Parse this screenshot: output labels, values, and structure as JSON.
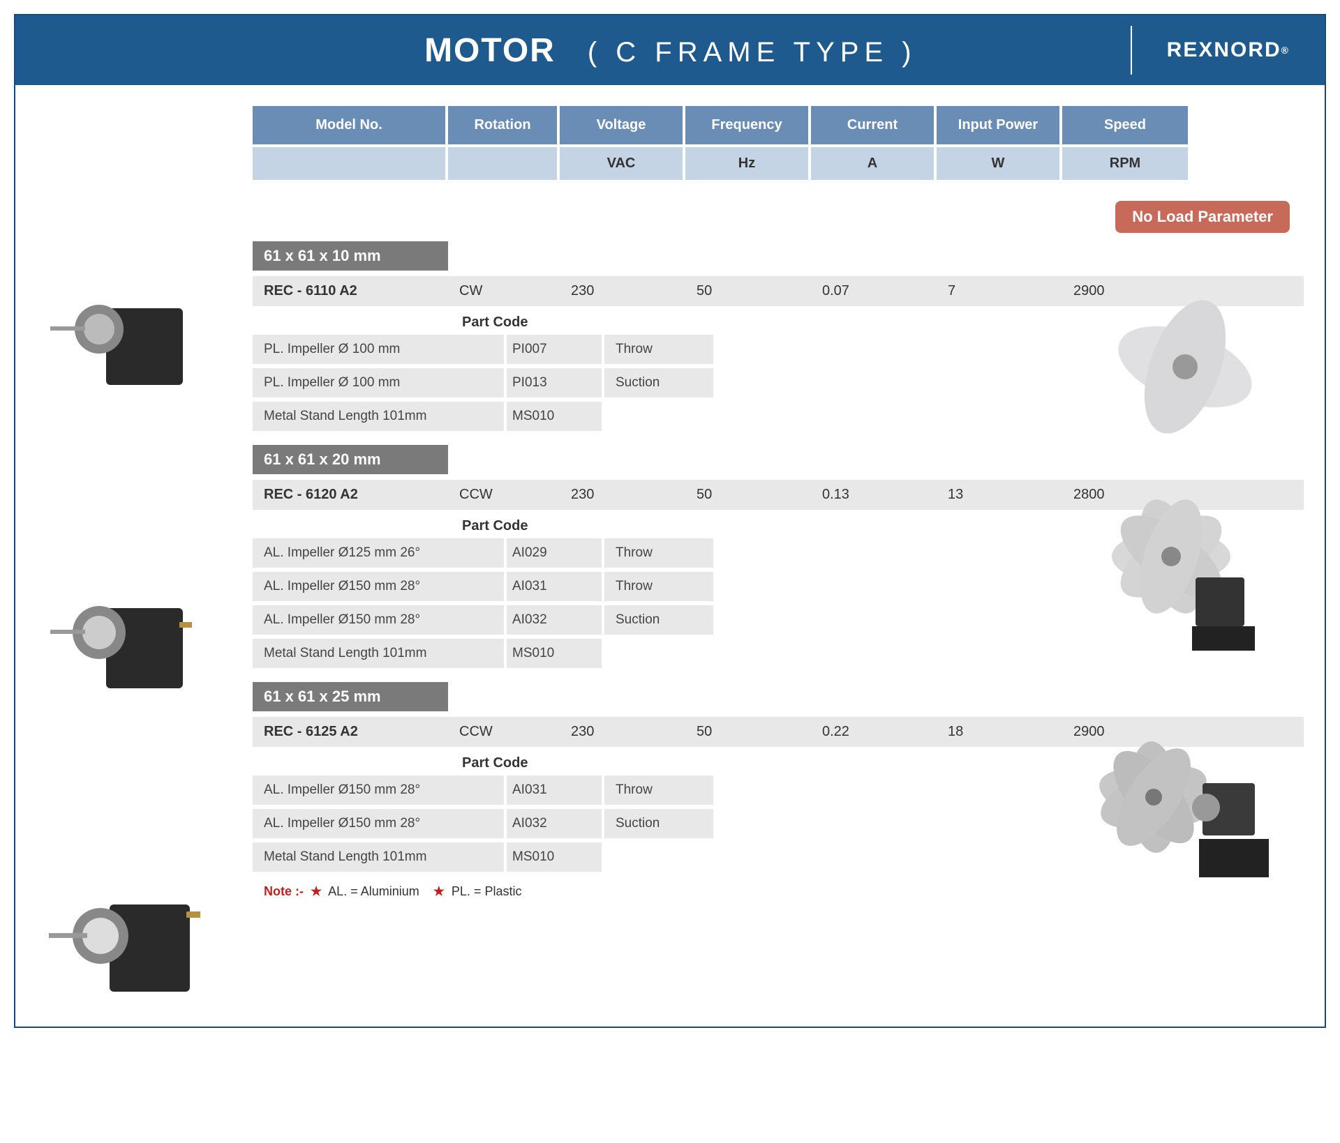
{
  "header": {
    "title_main": "MOTOR",
    "title_sub": "( C  FRAME  TYPE )",
    "brand": "REXNORD"
  },
  "table_header": {
    "cols": [
      "Model No.",
      "Rotation",
      "Voltage",
      "Frequency",
      "Current",
      "Input Power",
      "Speed"
    ],
    "units": [
      "",
      "",
      "VAC",
      "Hz",
      "A",
      "W",
      "RPM"
    ]
  },
  "badge": "No Load Parameter",
  "sections": [
    {
      "dim": "61 x 61 x 10 mm",
      "model": [
        "REC - 6110 A2",
        "CW",
        "230",
        "50",
        "0.07",
        "7",
        "2900"
      ],
      "part_label": "Part Code",
      "parts": [
        [
          "PL. Impeller Ø 100 mm",
          "PI007",
          "Throw"
        ],
        [
          "PL. Impeller Ø 100 mm",
          "PI013",
          "Suction"
        ],
        [
          "Metal Stand Length 101mm",
          "MS010",
          ""
        ]
      ]
    },
    {
      "dim": "61 x 61 x 20 mm",
      "model": [
        "REC - 6120 A2",
        "CCW",
        "230",
        "50",
        "0.13",
        "13",
        "2800"
      ],
      "part_label": "Part Code",
      "parts": [
        [
          "AL. Impeller Ø125 mm 26°",
          "AI029",
          "Throw"
        ],
        [
          "AL. Impeller Ø150 mm 28°",
          "AI031",
          "Throw"
        ],
        [
          "AL. Impeller Ø150 mm 28°",
          "AI032",
          "Suction"
        ],
        [
          "Metal Stand Length 101mm",
          "MS010",
          ""
        ]
      ]
    },
    {
      "dim": "61 x 61 x 25 mm",
      "model": [
        "REC - 6125 A2",
        "CCW",
        "230",
        "50",
        "0.22",
        "18",
        "2900"
      ],
      "part_label": "Part Code",
      "parts": [
        [
          "AL. Impeller Ø150 mm 28°",
          "AI031",
          "Throw"
        ],
        [
          "AL. Impeller Ø150 mm 28°",
          "AI032",
          "Suction"
        ],
        [
          "Metal Stand Length 101mm",
          "MS010",
          ""
        ]
      ]
    }
  ],
  "note": {
    "label": "Note :-",
    "al": "AL. = Aluminium",
    "pl": "PL. = Plastic"
  },
  "colors": {
    "header_bg": "#1e5a8e",
    "th_bg": "#6a8db5",
    "unit_bg": "#c5d4e4",
    "dim_bg": "#7a7a7a",
    "row_bg": "#e8e8e8",
    "badge_bg": "#c76a5a",
    "note_red": "#c02020"
  }
}
